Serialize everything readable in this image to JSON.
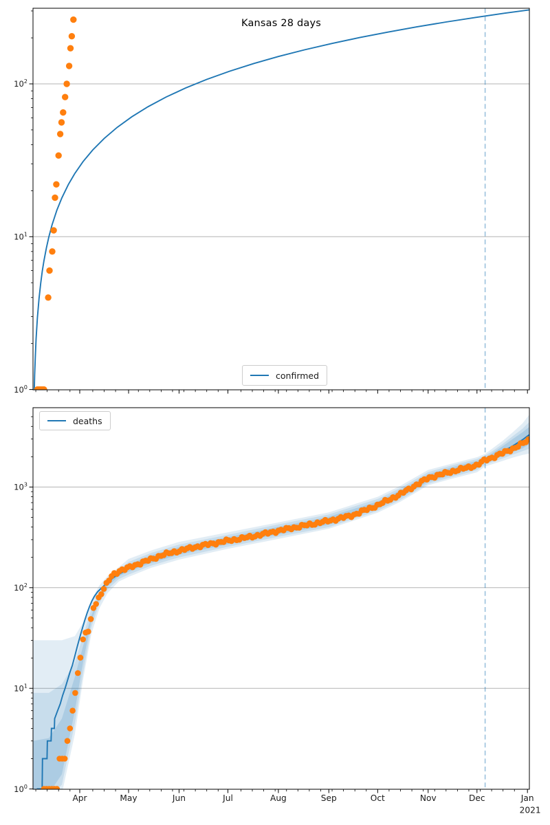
{
  "title": "Kansas 28 days",
  "colors": {
    "line": "#1f77b4",
    "dots": "#ff7f0e",
    "cutoff": "rgba(31,119,180,0.45)",
    "grid": "#b3b3b3",
    "spine": "#000000",
    "text": "#1a1a1a",
    "band_fill": "#1f77b4"
  },
  "x_axis": {
    "unit": "days since 2020-03-01",
    "domain": [
      2.3,
      307.2
    ],
    "cutoff_day": 280,
    "minor_tick_start": 4,
    "minor_tick_step": 7,
    "year_label": "2021",
    "month_ticks": [
      {
        "label": "Apr",
        "day": 31
      },
      {
        "label": "May",
        "day": 61
      },
      {
        "label": "Jun",
        "day": 92
      },
      {
        "label": "Jul",
        "day": 122
      },
      {
        "label": "Aug",
        "day": 153
      },
      {
        "label": "Sep",
        "day": 184
      },
      {
        "label": "Oct",
        "day": 214
      },
      {
        "label": "Nov",
        "day": 245
      },
      {
        "label": "Dec",
        "day": 275
      },
      {
        "label": "Jan",
        "day": 306
      }
    ]
  },
  "chart_data": [
    {
      "id": "confirmed",
      "type": "line+scatter",
      "title": "Kansas 28 days",
      "legend_label": "confirmed",
      "yscale": "log",
      "y_max": 313,
      "y_tick_exponents": [
        0,
        1,
        2
      ],
      "line": [
        [
          3.0,
          0.92
        ],
        [
          3.3,
          1.25
        ],
        [
          3.7,
          1.65
        ],
        [
          4.2,
          2.15
        ],
        [
          5,
          2.95
        ],
        [
          6,
          3.95
        ],
        [
          7,
          4.95
        ],
        [
          8,
          5.95
        ],
        [
          9,
          6.95
        ],
        [
          10.5,
          8.45
        ],
        [
          12,
          9.95
        ],
        [
          14,
          11.95
        ],
        [
          17,
          14.95
        ],
        [
          20,
          17.95
        ],
        [
          24,
          21.95
        ],
        [
          28,
          25.95
        ],
        [
          33,
          30.95
        ],
        [
          39,
          36.95
        ],
        [
          46,
          43.95
        ],
        [
          54,
          51.95
        ],
        [
          63,
          60.95
        ],
        [
          73,
          70.95
        ],
        [
          84,
          81.95
        ],
        [
          96,
          93.95
        ],
        [
          109,
          106.95
        ],
        [
          123,
          120.95
        ],
        [
          138,
          135.95
        ],
        [
          153,
          150.95
        ],
        [
          169,
          166.95
        ],
        [
          186,
          183.95
        ],
        [
          203,
          200.95
        ],
        [
          220,
          217.95
        ],
        [
          238,
          235.95
        ],
        [
          256,
          253.95
        ],
        [
          274,
          271.95
        ],
        [
          292,
          289.95
        ],
        [
          307,
          304.95
        ]
      ],
      "scatter": [
        [
          5,
          1
        ],
        [
          5.8,
          1
        ],
        [
          6.6,
          1
        ],
        [
          7.4,
          1
        ],
        [
          8.2,
          1
        ],
        [
          9,
          1
        ],
        [
          11.6,
          4
        ],
        [
          12.4,
          6
        ],
        [
          14.1,
          8
        ],
        [
          15,
          11
        ],
        [
          15.8,
          18
        ],
        [
          16.6,
          22
        ],
        [
          18,
          34
        ],
        [
          19,
          47
        ],
        [
          19.8,
          56
        ],
        [
          20.8,
          65
        ],
        [
          22,
          82
        ],
        [
          23,
          100
        ],
        [
          24.5,
          131
        ],
        [
          25.3,
          171
        ],
        [
          26.1,
          205
        ],
        [
          27.1,
          263
        ]
      ]
    },
    {
      "id": "deaths",
      "type": "line+scatter+bands",
      "legend_label": "deaths",
      "yscale": "log",
      "y_max": 5900,
      "y_tick_exponents": [
        0,
        1,
        2,
        3
      ],
      "line": [
        [
          4.8,
          0.9
        ],
        [
          5,
          1
        ],
        [
          7.9,
          1
        ],
        [
          8.1,
          2
        ],
        [
          10.9,
          2
        ],
        [
          11.1,
          3
        ],
        [
          13.4,
          3
        ],
        [
          13.6,
          4
        ],
        [
          15.4,
          4
        ],
        [
          15.6,
          5
        ],
        [
          17.4,
          6
        ],
        [
          19,
          7
        ],
        [
          20.5,
          8.5
        ],
        [
          22,
          10
        ],
        [
          23.5,
          12
        ],
        [
          25,
          14.5
        ],
        [
          26.5,
          17
        ],
        [
          28,
          21
        ],
        [
          29.5,
          26
        ],
        [
          31,
          32
        ],
        [
          32.5,
          39
        ],
        [
          34,
          47
        ],
        [
          35.5,
          56
        ],
        [
          37,
          65
        ],
        [
          38.5,
          74
        ],
        [
          40,
          82
        ],
        [
          42,
          91
        ],
        [
          44,
          98
        ],
        [
          46,
          105
        ],
        [
          48,
          112
        ],
        [
          50,
          120
        ],
        [
          53,
          130
        ],
        [
          56,
          139
        ],
        [
          59,
          148
        ],
        [
          61,
          155
        ],
        [
          68,
          173
        ],
        [
          75,
          191
        ],
        [
          82,
          211
        ],
        [
          92,
          232
        ],
        [
          106,
          261
        ],
        [
          122,
          292
        ],
        [
          136,
          319
        ],
        [
          153,
          367
        ],
        [
          167,
          407
        ],
        [
          184,
          461
        ],
        [
          198,
          519
        ],
        [
          214,
          658
        ],
        [
          228,
          848
        ],
        [
          245,
          1228
        ],
        [
          259,
          1425
        ],
        [
          275,
          1660
        ],
        [
          280,
          1850
        ],
        [
          285,
          2000
        ],
        [
          291,
          2250
        ],
        [
          297,
          2560
        ],
        [
          303,
          2950
        ],
        [
          307,
          3300
        ]
      ],
      "scatter_step_days": 1.6,
      "scatter_anchors": [
        [
          9,
          1
        ],
        [
          17,
          1
        ],
        [
          18.5,
          2
        ],
        [
          22,
          2
        ],
        [
          23,
          3
        ],
        [
          24.5,
          4
        ],
        [
          25.5,
          5
        ],
        [
          26.5,
          6
        ],
        [
          27.5,
          8
        ],
        [
          28.5,
          9.5
        ],
        [
          29.5,
          13
        ],
        [
          30.5,
          18
        ],
        [
          32,
          23
        ],
        [
          33,
          30
        ],
        [
          33.8,
          35
        ],
        [
          35,
          36
        ],
        [
          36.5,
          37
        ],
        [
          38,
          49
        ],
        [
          39,
          62
        ],
        [
          40.5,
          68
        ],
        [
          42,
          76
        ],
        [
          43,
          81
        ],
        [
          44.5,
          90
        ],
        [
          46,
          99
        ],
        [
          47.3,
          107
        ],
        [
          48.5,
          115
        ],
        [
          50,
          127
        ],
        [
          51.5,
          135
        ],
        [
          53.5,
          141
        ],
        [
          55.5,
          148
        ],
        [
          58.5,
          152
        ],
        [
          61,
          158
        ],
        [
          68,
          175
        ],
        [
          75,
          192
        ],
        [
          82,
          212
        ],
        [
          92,
          233
        ],
        [
          106,
          262
        ],
        [
          122,
          293
        ],
        [
          136,
          320
        ],
        [
          153,
          368
        ],
        [
          167,
          408
        ],
        [
          184,
          462
        ],
        [
          198,
          520
        ],
        [
          214,
          660
        ],
        [
          228,
          850
        ],
        [
          245,
          1230
        ],
        [
          259,
          1420
        ],
        [
          275,
          1650
        ],
        [
          280,
          1850
        ],
        [
          285,
          1980
        ],
        [
          291,
          2180
        ],
        [
          297,
          2400
        ],
        [
          303,
          2700
        ],
        [
          307,
          2950
        ]
      ],
      "bands": [
        {
          "name": "outer interval",
          "opacity": 0.13,
          "points": [
            [
              2.3,
              30,
              0.5
            ],
            [
              12,
              30,
              0.5
            ],
            [
              20,
              30,
              0.9
            ],
            [
              28,
              33,
              3.5
            ],
            [
              33,
              45,
              12
            ],
            [
              38,
              75,
              34
            ],
            [
              43,
              105,
              62
            ],
            [
              48,
              130,
              88
            ],
            [
              55,
              160,
              115
            ],
            [
              61,
              193,
              128
            ],
            [
              75,
              235,
              158
            ],
            [
              92,
              285,
              190
            ],
            [
              122,
              355,
              243
            ],
            [
              153,
              445,
              305
            ],
            [
              184,
              560,
              385
            ],
            [
              214,
              800,
              555
            ],
            [
              228,
              1030,
              715
            ],
            [
              245,
              1480,
              1040
            ],
            [
              259,
              1700,
              1200
            ],
            [
              275,
              1980,
              1400
            ],
            [
              280,
              2130,
              1600
            ],
            [
              285,
              2450,
              1700
            ],
            [
              291,
              2900,
              1820
            ],
            [
              297,
              3500,
              1960
            ],
            [
              303,
              4300,
              2080
            ],
            [
              307,
              5200,
              2150
            ]
          ]
        },
        {
          "name": "middle interval",
          "opacity": 0.13,
          "points": [
            [
              2.3,
              9,
              0.8
            ],
            [
              12,
              9,
              0.8
            ],
            [
              20,
              11,
              1.1
            ],
            [
              28,
              18,
              4.5
            ],
            [
              33,
              33,
              14
            ],
            [
              38,
              60,
              40
            ],
            [
              43,
              92,
              70
            ],
            [
              48,
              122,
              96
            ],
            [
              55,
              150,
              122
            ],
            [
              61,
              180,
              135
            ],
            [
              75,
              222,
              166
            ],
            [
              92,
              268,
              200
            ],
            [
              122,
              335,
              255
            ],
            [
              153,
              425,
              320
            ],
            [
              184,
              535,
              400
            ],
            [
              214,
              760,
              580
            ],
            [
              228,
              980,
              745
            ],
            [
              245,
              1410,
              1080
            ],
            [
              259,
              1630,
              1250
            ],
            [
              275,
              1900,
              1470
            ],
            [
              280,
              2050,
              1670
            ],
            [
              285,
              2300,
              1780
            ],
            [
              291,
              2700,
              1930
            ],
            [
              297,
              3200,
              2100
            ],
            [
              303,
              3800,
              2270
            ],
            [
              307,
              4400,
              2400
            ]
          ]
        },
        {
          "name": "inner interval",
          "opacity": 0.16,
          "points": [
            [
              2.3,
              3,
              0.9
            ],
            [
              12,
              3.2,
              0.9
            ],
            [
              20,
              5,
              1.4
            ],
            [
              28,
              13,
              6
            ],
            [
              33,
              26,
              18
            ],
            [
              38,
              52,
              46
            ],
            [
              43,
              84,
              76
            ],
            [
              48,
              115,
              103
            ],
            [
              55,
              143,
              130
            ],
            [
              61,
              170,
              144
            ],
            [
              75,
              210,
              176
            ],
            [
              92,
              253,
              213
            ],
            [
              122,
              318,
              270
            ],
            [
              153,
              402,
              338
            ],
            [
              184,
              508,
              422
            ],
            [
              214,
              718,
              610
            ],
            [
              228,
              930,
              785
            ],
            [
              245,
              1340,
              1130
            ],
            [
              259,
              1560,
              1310
            ],
            [
              275,
              1820,
              1540
            ],
            [
              280,
              1960,
              1740
            ],
            [
              285,
              2200,
              1870
            ],
            [
              291,
              2560,
              2030
            ],
            [
              297,
              3000,
              2220
            ],
            [
              303,
              3500,
              2420
            ],
            [
              307,
              3950,
              2650
            ]
          ]
        }
      ]
    }
  ]
}
